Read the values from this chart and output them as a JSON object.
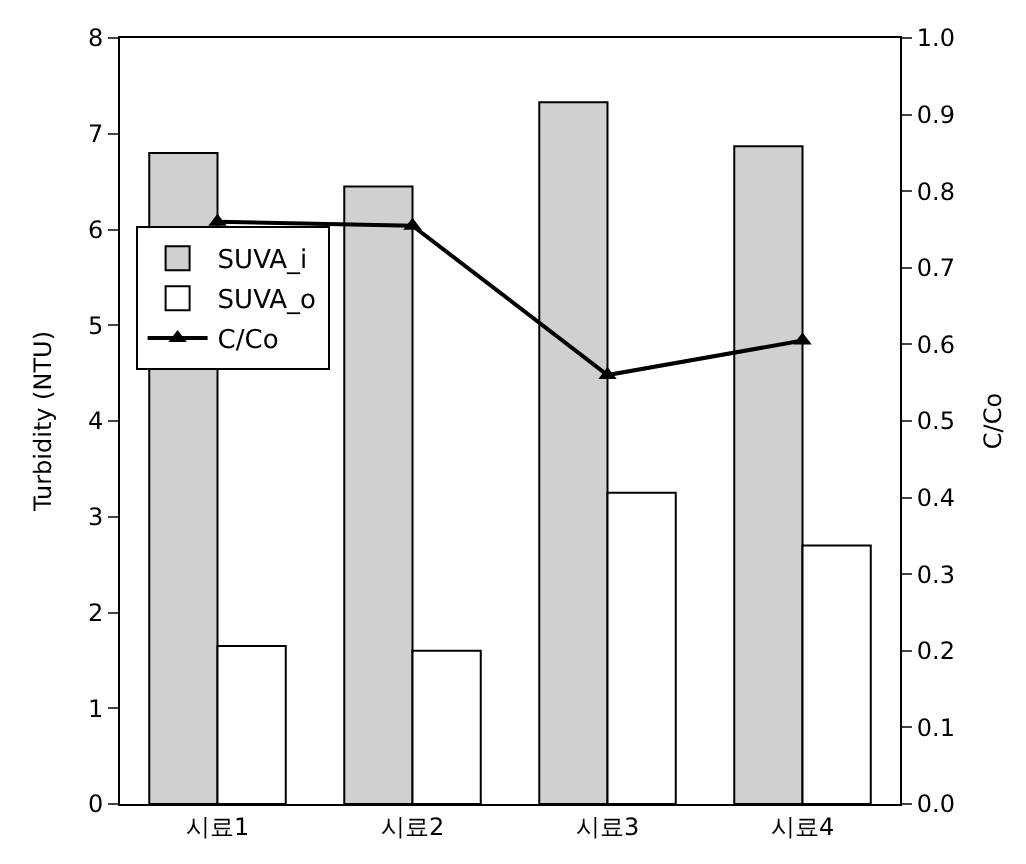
{
  "chart_data": {
    "type": "bar",
    "ylabel": "Turbidity (NTU)",
    "y2label": "C/Co",
    "categories": [
      "시료1",
      "시료2",
      "시료3",
      "시료4"
    ],
    "series": [
      {
        "name": "SUVA_i",
        "color": "#d0d0d0",
        "values": [
          6.8,
          6.45,
          7.33,
          6.87
        ]
      },
      {
        "name": "SUVA_o",
        "color": "#ffffff",
        "values": [
          1.65,
          1.6,
          3.25,
          2.7
        ]
      },
      {
        "name": "C/Co",
        "type": "line",
        "axis": "y2",
        "color": "#000000",
        "marker": "triangle",
        "values": [
          0.76,
          0.755,
          0.56,
          0.605
        ]
      }
    ],
    "ylim": [
      0,
      8
    ],
    "yticks": [
      0,
      1,
      2,
      3,
      4,
      5,
      6,
      7,
      8
    ],
    "y2lim": [
      0,
      1
    ],
    "y2ticks": [
      {
        "value": 0,
        "label": "0.0"
      },
      {
        "value": 0.1,
        "label": "0.1"
      },
      {
        "value": 0.2,
        "label": "0.2"
      },
      {
        "value": 0.3,
        "label": "0.3"
      },
      {
        "value": 0.4,
        "label": "0.4"
      },
      {
        "value": 0.5,
        "label": "0.5"
      },
      {
        "value": 0.6,
        "label": "0.6"
      },
      {
        "value": 0.7,
        "label": "0.7"
      },
      {
        "value": 0.8,
        "label": "0.8"
      },
      {
        "value": 0.9,
        "label": "0.9"
      },
      {
        "value": 1,
        "label": "1.0"
      }
    ],
    "legend": "left",
    "grid": false
  }
}
